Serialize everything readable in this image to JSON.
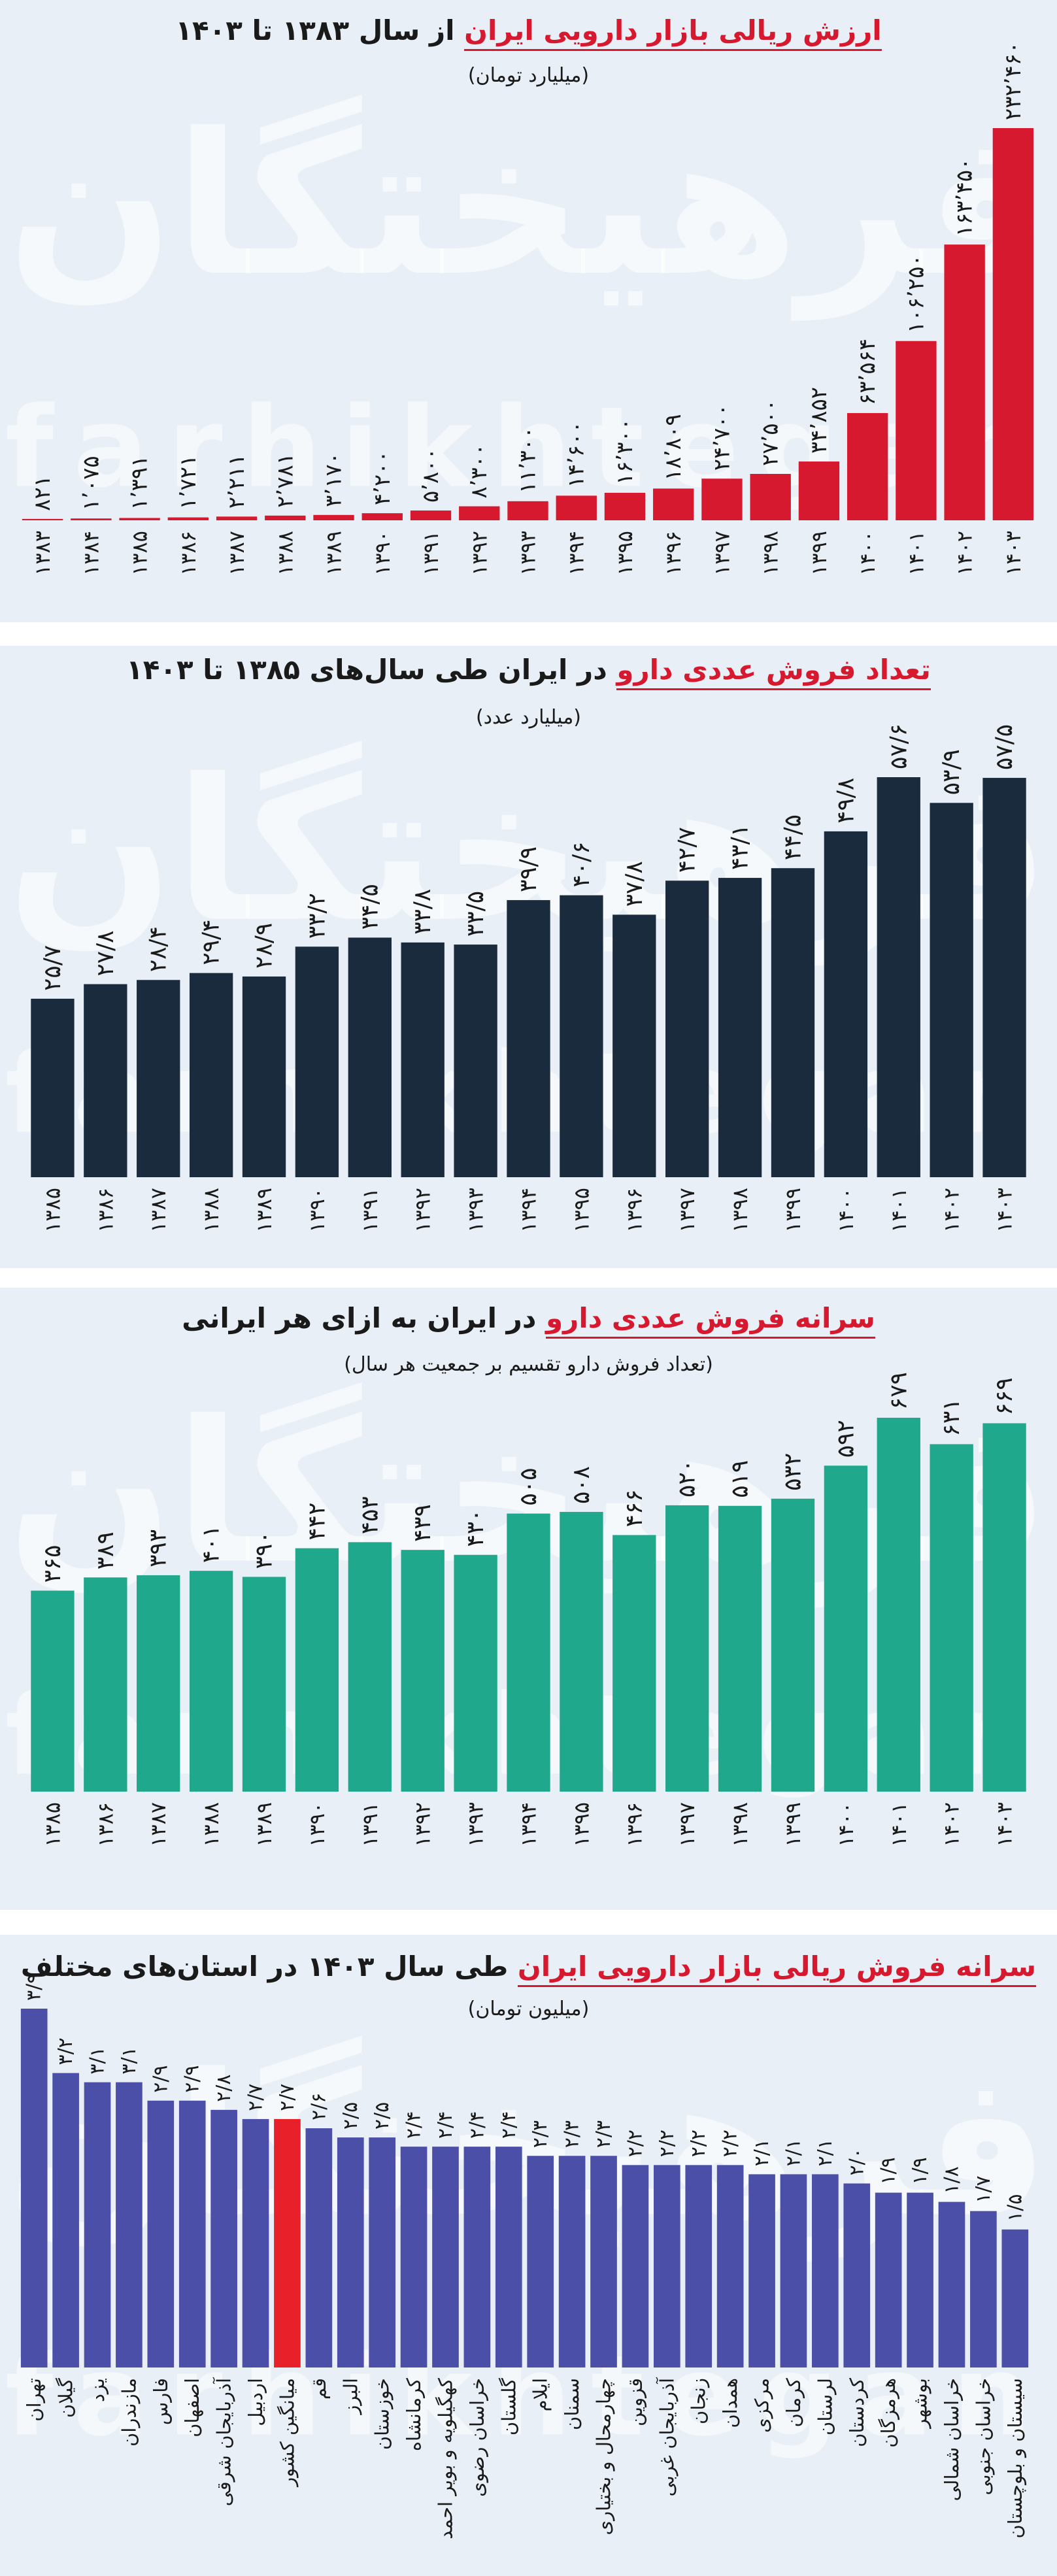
{
  "watermark": {
    "fa": "فرهیختگان",
    "en": "farhikhtegan"
  },
  "chart_data": [
    {
      "type": "bar",
      "title": [
        "ارزش ریالی بازار دارویی ایران",
        "از سال ۱۳۸۳ تا ۱۴۰۳"
      ],
      "subtitle": "(میلیارد تومان)",
      "color": "#d7192f",
      "categories": [
        "۱۳۸۳",
        "۱۳۸۴",
        "۱۳۸۵",
        "۱۳۸۶",
        "۱۳۸۷",
        "۱۳۸۸",
        "۱۳۸۹",
        "۱۳۹۰",
        "۱۳۹۱",
        "۱۳۹۲",
        "۱۳۹۳",
        "۱۳۹۴",
        "۱۳۹۵",
        "۱۳۹۶",
        "۱۳۹۷",
        "۱۳۹۸",
        "۱۳۹۹",
        "۱۴۰۰",
        "۱۴۰۱",
        "۱۴۰۲",
        "۱۴۰۳"
      ],
      "values": [
        821,
        1075,
        1391,
        1721,
        2211,
        2781,
        3170,
        4200,
        5800,
        8300,
        11300,
        14600,
        16300,
        18809,
        24700,
        27500,
        34852,
        63564,
        106250,
        163450,
        232460
      ],
      "value_labels": [
        "۸۲۱",
        "۱٬۰۷۵",
        "۱٬۳۹۱",
        "۱٬۷۲۱",
        "۲٬۲۱۱",
        "۲٬۷۸۱",
        "۳٬۱۷۰",
        "۴٬۲۰۰",
        "۵٬۸۰۰",
        "۸٬۳۰۰",
        "۱۱٬۳۰۰",
        "۱۴٬۶۰۰",
        "۱۶٬۳۰۰",
        "۱۸٬۸۰۹",
        "۲۴٬۷۰۰",
        "۲۷٬۵۰۰",
        "۳۴٬۸۵۲",
        "۶۳٬۵۶۴",
        "۱۰۶٬۲۵۰",
        "۱۶۳٬۴۵۰",
        "۲۳۲٬۴۶۰"
      ]
    },
    {
      "type": "bar",
      "title": [
        "تعداد فروش عددی دارو",
        "در ایران طی سال‌های ۱۳۸۵ تا ۱۴۰۳"
      ],
      "subtitle": "(میلیارد عدد)",
      "color": "#1b2b3e",
      "categories": [
        "۱۳۸۵",
        "۱۳۸۶",
        "۱۳۸۷",
        "۱۳۸۸",
        "۱۳۸۹",
        "۱۳۹۰",
        "۱۳۹۱",
        "۱۳۹۲",
        "۱۳۹۳",
        "۱۳۹۴",
        "۱۳۹۵",
        "۱۳۹۶",
        "۱۳۹۷",
        "۱۳۹۸",
        "۱۳۹۹",
        "۱۴۰۰",
        "۱۴۰۱",
        "۱۴۰۲",
        "۱۴۰۳"
      ],
      "values": [
        25.7,
        27.8,
        28.4,
        29.4,
        28.9,
        33.2,
        34.5,
        33.8,
        33.5,
        39.9,
        40.6,
        37.8,
        42.7,
        43.1,
        44.5,
        49.8,
        57.6,
        53.9,
        57.5
      ],
      "value_labels": [
        "۲۵/۷",
        "۲۷/۸",
        "۲۸/۴",
        "۲۹/۴",
        "۲۸/۹",
        "۳۳/۲",
        "۳۴/۵",
        "۳۳/۸",
        "۳۳/۵",
        "۳۹/۹",
        "۴۰/۶",
        "۳۷/۸",
        "۴۲/۷",
        "۴۳/۱",
        "۴۴/۵",
        "۴۹/۸",
        "۵۷/۶",
        "۵۳/۹",
        "۵۷/۵"
      ]
    },
    {
      "type": "bar",
      "title": [
        "سرانه فروش عددی دارو",
        "در ایران به ازای هر ایرانی"
      ],
      "subtitle": "(تعداد فروش دارو تقسیم بر جمعیت هر سال)",
      "color": "#1fa88b",
      "categories": [
        "۱۳۸۵",
        "۱۳۸۶",
        "۱۳۸۷",
        "۱۳۸۸",
        "۱۳۸۹",
        "۱۳۹۰",
        "۱۳۹۱",
        "۱۳۹۲",
        "۱۳۹۳",
        "۱۳۹۴",
        "۱۳۹۵",
        "۱۳۹۶",
        "۱۳۹۷",
        "۱۳۹۸",
        "۱۳۹۹",
        "۱۴۰۰",
        "۱۴۰۱",
        "۱۴۰۲",
        "۱۴۰۳"
      ],
      "values": [
        365,
        389,
        393,
        401,
        390,
        442,
        453,
        439,
        430,
        505,
        508,
        466,
        520,
        519,
        532,
        592,
        679,
        631,
        669
      ],
      "value_labels": [
        "۳۶۵",
        "۳۸۹",
        "۳۹۳",
        "۴۰۱",
        "۳۹۰",
        "۴۴۲",
        "۴۵۳",
        "۴۳۹",
        "۴۳۰",
        "۵۰۵",
        "۵۰۸",
        "۴۶۶",
        "۵۲۰",
        "۵۱۹",
        "۵۳۲",
        "۵۹۲",
        "۶۷۹",
        "۶۳۱",
        "۶۶۹"
      ]
    },
    {
      "type": "bar",
      "title": [
        "سرانه فروش ریالی بازار دارویی ایران",
        "طی سال ۱۴۰۳ در استان‌های مختلف"
      ],
      "subtitle": "(میلیون تومان)",
      "categories": [
        "تهران",
        "گیلان",
        "یزد",
        "مازندران",
        "فارس",
        "اصفهان",
        "آذربایجان شرقی",
        "اردبیل",
        "میانگین کشور",
        "قم",
        "البرز",
        "خوزستان",
        "کرمانشاه",
        "کهگیلویه و بویر احمد",
        "خراسان رضوی",
        "گلستان",
        "ایلام",
        "سمنان",
        "چهارمحال و بختیاری",
        "قزوین",
        "آذربایجان غربی",
        "زنجان",
        "همدان",
        "مرکزی",
        "کرمان",
        "لرستان",
        "کردستان",
        "هرمزگان",
        "بوشهر",
        "خراسان شمالی",
        "خراسان جنوبی",
        "سیستان و بلوچستان"
      ],
      "values": [
        3.9,
        3.2,
        3.1,
        3.1,
        2.9,
        2.9,
        2.8,
        2.7,
        2.7,
        2.6,
        2.5,
        2.5,
        2.4,
        2.4,
        2.4,
        2.4,
        2.3,
        2.3,
        2.3,
        2.2,
        2.2,
        2.2,
        2.2,
        2.1,
        2.1,
        2.1,
        2.0,
        1.9,
        1.9,
        1.8,
        1.7,
        1.5
      ],
      "value_labels": [
        "۳/۹",
        "۳/۲",
        "۳/۱",
        "۳/۱",
        "۲/۹",
        "۲/۹",
        "۲/۸",
        "۲/۷",
        "۲/۷",
        "۲/۶",
        "۲/۵",
        "۲/۵",
        "۲/۴",
        "۲/۴",
        "۲/۴",
        "۲/۴",
        "۲/۳",
        "۲/۳",
        "۲/۳",
        "۲/۲",
        "۲/۲",
        "۲/۲",
        "۲/۲",
        "۲/۱",
        "۲/۱",
        "۲/۱",
        "۲/۰",
        "۱/۹",
        "۱/۹",
        "۱/۸",
        "۱/۷",
        "۱/۵"
      ],
      "colors": [
        "#4b4fa8",
        "#4b4fa8",
        "#4b4fa8",
        "#4b4fa8",
        "#4b4fa8",
        "#4b4fa8",
        "#4b4fa8",
        "#4b4fa8",
        "#e8202a",
        "#4b4fa8",
        "#4b4fa8",
        "#4b4fa8",
        "#4b4fa8",
        "#4b4fa8",
        "#4b4fa8",
        "#4b4fa8",
        "#4b4fa8",
        "#4b4fa8",
        "#4b4fa8",
        "#4b4fa8",
        "#4b4fa8",
        "#4b4fa8",
        "#4b4fa8",
        "#4b4fa8",
        "#4b4fa8",
        "#4b4fa8",
        "#4b4fa8",
        "#4b4fa8",
        "#4b4fa8",
        "#4b4fa8",
        "#4b4fa8",
        "#4b4fa8"
      ]
    }
  ]
}
